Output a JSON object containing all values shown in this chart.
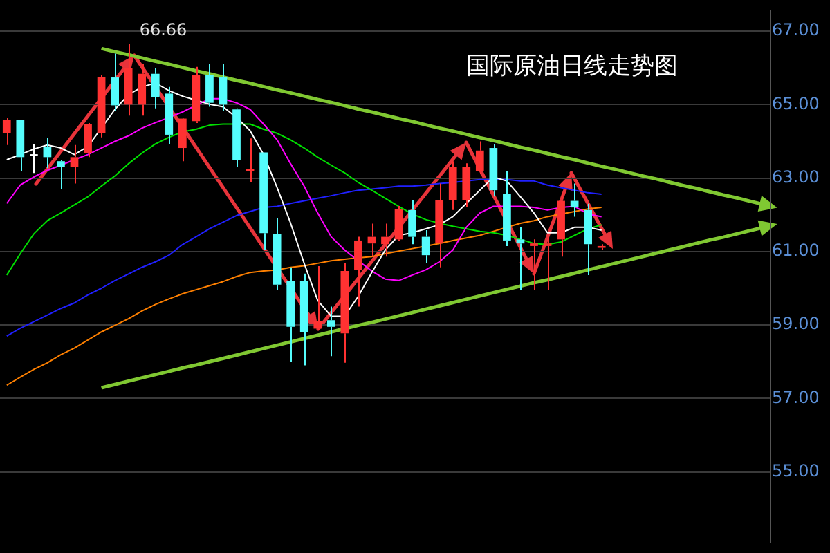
{
  "chart_data": {
    "type": "candlestick",
    "title": "国际原油日线走势图",
    "categories": [
      null,
      null,
      null,
      null,
      null,
      null,
      null,
      null,
      null,
      null,
      null,
      null,
      null,
      null,
      null,
      null,
      null,
      null,
      null,
      null,
      null,
      null,
      null,
      null,
      null,
      null,
      null,
      null,
      null,
      null,
      null,
      null,
      null,
      null,
      null,
      null,
      null,
      null,
      null,
      null,
      null,
      null,
      null,
      null,
      null,
      null,
      null,
      null,
      null,
      null,
      null,
      null,
      null,
      null,
      null,
      null,
      null
    ],
    "ohlc": [
      [
        64.22,
        64.65,
        63.9,
        64.58
      ],
      [
        64.58,
        64.58,
        63.2,
        63.57
      ],
      [
        63.65,
        63.93,
        63.14,
        63.65
      ],
      [
        63.86,
        64.1,
        63.27,
        63.57
      ],
      [
        63.46,
        63.5,
        62.7,
        63.3
      ],
      [
        63.3,
        63.9,
        62.85,
        63.57
      ],
      [
        63.68,
        64.5,
        63.57,
        64.47
      ],
      [
        64.22,
        65.8,
        64.11,
        65.74
      ],
      [
        65.74,
        66.39,
        64.83,
        64.98
      ],
      [
        65.0,
        66.66,
        64.7,
        66.0
      ],
      [
        65.0,
        66.1,
        64.7,
        65.84
      ],
      [
        65.84,
        66.0,
        64.9,
        65.2
      ],
      [
        65.3,
        65.48,
        63.93,
        64.18
      ],
      [
        63.82,
        64.65,
        63.46,
        64.62
      ],
      [
        64.55,
        66.03,
        64.5,
        65.81
      ],
      [
        65.81,
        66.1,
        64.94,
        65.05
      ],
      [
        65.74,
        66.1,
        64.83,
        65.0
      ],
      [
        64.87,
        64.9,
        63.3,
        63.5
      ],
      [
        63.2,
        64.08,
        62.88,
        63.25
      ],
      [
        63.7,
        63.7,
        61.04,
        61.5
      ],
      [
        61.48,
        61.9,
        59.95,
        60.1
      ],
      [
        60.2,
        60.57,
        58.0,
        58.95
      ],
      [
        60.2,
        60.4,
        57.9,
        58.8
      ],
      [
        58.9,
        60.6,
        58.85,
        59.1
      ],
      [
        59.13,
        59.5,
        58.15,
        58.95
      ],
      [
        58.77,
        60.68,
        57.97,
        60.47
      ],
      [
        60.5,
        61.4,
        59.5,
        61.3
      ],
      [
        61.22,
        61.76,
        60.86,
        61.4
      ],
      [
        61.2,
        61.76,
        60.86,
        61.4
      ],
      [
        61.33,
        62.24,
        61.3,
        62.16
      ],
      [
        62.13,
        62.4,
        61.2,
        61.4
      ],
      [
        61.4,
        61.58,
        60.68,
        60.9
      ],
      [
        61.22,
        62.85,
        60.57,
        62.4
      ],
      [
        62.4,
        63.46,
        62.13,
        63.3
      ],
      [
        62.4,
        63.4,
        62.2,
        63.3
      ],
      [
        63.2,
        64.0,
        63.1,
        63.75
      ],
      [
        63.82,
        63.93,
        62.5,
        62.67
      ],
      [
        62.56,
        63.2,
        61.15,
        61.3
      ],
      [
        61.33,
        61.66,
        59.96,
        61.22
      ],
      [
        61.15,
        61.33,
        59.96,
        61.22
      ],
      [
        61.15,
        61.4,
        59.96,
        61.22
      ],
      [
        61.33,
        62.6,
        60.86,
        62.38
      ],
      [
        62.38,
        62.85,
        61.95,
        62.2
      ],
      [
        62.13,
        62.3,
        60.36,
        61.2
      ],
      [
        61.1,
        61.2,
        61.05,
        61.15
      ],
      null,
      null,
      null,
      null,
      null,
      null,
      null,
      null,
      null,
      null,
      null,
      null
    ],
    "colors": [
      "#ff3232",
      "#54fcfc",
      "#ffffff",
      "#54fcfc",
      "#54fcfc",
      "#ff3232",
      "#ff3232",
      "#ff3232",
      "#54fcfc",
      "#ff3232",
      "#ff3232",
      "#54fcfc",
      "#54fcfc",
      "#ff3232",
      "#ff3232",
      "#54fcfc",
      "#54fcfc",
      "#54fcfc",
      "#ff3232",
      "#54fcfc",
      "#54fcfc",
      "#54fcfc",
      "#54fcfc",
      "#ff3232",
      "#54fcfc",
      "#ff3232",
      "#ff3232",
      "#ff3232",
      "#ff3232",
      "#ff3232",
      "#54fcfc",
      "#54fcfc",
      "#ff3232",
      "#ff3232",
      "#ff3232",
      "#ff3232",
      "#54fcfc",
      "#54fcfc",
      "#54fcfc",
      "#ff3232",
      "#ff3232",
      "#ff3232",
      "#54fcfc",
      "#54fcfc",
      "#ff3232",
      null,
      null,
      null,
      null,
      null,
      null,
      null,
      null,
      null,
      null,
      null,
      null
    ],
    "series": [
      {
        "type": "line",
        "color": "#ffffff",
        "values": [
          63.5,
          63.64,
          63.79,
          63.9,
          63.82,
          63.64,
          63.86,
          64.36,
          64.87,
          65.27,
          65.48,
          65.59,
          65.38,
          65.23,
          65.12,
          65.01,
          64.94,
          64.65,
          64.29,
          63.64,
          62.74,
          61.77,
          60.68,
          59.67,
          59.24,
          59.24,
          59.78,
          60.43,
          61.04,
          61.44,
          61.51,
          61.62,
          61.73,
          61.95,
          62.31,
          62.67,
          63.03,
          62.92,
          62.49,
          62.05,
          61.51,
          61.51,
          61.66,
          61.66,
          61.58,
          null,
          null,
          null,
          null,
          null,
          null,
          null,
          null,
          null,
          null,
          null,
          null
        ]
      },
      {
        "type": "line",
        "color": "#ff00ff",
        "values": [
          62.31,
          62.81,
          63.03,
          63.21,
          63.35,
          63.5,
          63.64,
          63.82,
          64.0,
          64.15,
          64.36,
          64.51,
          64.65,
          64.8,
          64.98,
          65.16,
          65.16,
          65.05,
          64.87,
          64.47,
          64.04,
          63.39,
          62.78,
          62.05,
          61.4,
          61.04,
          60.75,
          60.47,
          60.25,
          60.21,
          60.36,
          60.5,
          60.72,
          61.04,
          61.66,
          62.05,
          62.23,
          62.23,
          62.23,
          62.2,
          62.13,
          62.2,
          62.23,
          62.02,
          61.95,
          null,
          null,
          null,
          null,
          null,
          null,
          null,
          null,
          null,
          null,
          null,
          null
        ]
      },
      {
        "type": "line",
        "color": "#00e000",
        "values": [
          60.36,
          60.94,
          61.48,
          61.84,
          62.05,
          62.27,
          62.49,
          62.78,
          63.06,
          63.39,
          63.68,
          63.93,
          64.11,
          64.26,
          64.33,
          64.44,
          64.47,
          64.47,
          64.47,
          64.33,
          64.22,
          64.04,
          63.82,
          63.57,
          63.35,
          63.14,
          62.88,
          62.67,
          62.45,
          62.23,
          62.02,
          61.87,
          61.77,
          61.69,
          61.62,
          61.55,
          61.51,
          61.44,
          61.33,
          61.22,
          61.19,
          61.26,
          61.44,
          61.62,
          61.73,
          null,
          null,
          null,
          null,
          null,
          null,
          null,
          null,
          null,
          null,
          null,
          null
        ]
      },
      {
        "type": "line",
        "color": "#2020ff",
        "values": [
          58.7,
          58.91,
          59.09,
          59.27,
          59.45,
          59.6,
          59.82,
          60.0,
          60.21,
          60.39,
          60.57,
          60.72,
          60.9,
          61.19,
          61.4,
          61.62,
          61.8,
          61.98,
          62.09,
          62.2,
          62.23,
          62.31,
          62.38,
          62.45,
          62.52,
          62.6,
          62.67,
          62.7,
          62.74,
          62.78,
          62.78,
          62.81,
          62.85,
          62.88,
          62.92,
          62.96,
          62.96,
          62.96,
          62.92,
          62.92,
          62.81,
          62.74,
          62.67,
          62.6,
          62.56,
          null,
          null,
          null,
          null,
          null,
          null,
          null,
          null,
          null,
          null,
          null,
          null
        ]
      },
      {
        "type": "line",
        "color": "#ff8000",
        "values": [
          57.36,
          57.58,
          57.79,
          57.97,
          58.19,
          58.37,
          58.59,
          58.81,
          58.99,
          59.17,
          59.38,
          59.56,
          59.71,
          59.85,
          59.96,
          60.07,
          60.18,
          60.32,
          60.43,
          60.47,
          60.5,
          60.57,
          60.61,
          60.68,
          60.75,
          60.79,
          60.83,
          60.86,
          60.94,
          61.01,
          61.08,
          61.15,
          61.22,
          61.3,
          61.37,
          61.44,
          61.55,
          61.66,
          61.77,
          61.84,
          61.95,
          62.02,
          62.09,
          62.16,
          62.2,
          null,
          null,
          null,
          null,
          null,
          null,
          null,
          null,
          null,
          null,
          null,
          null
        ]
      },
      {
        "type": "line",
        "color": "#80c832",
        "values": [
          null,
          null,
          null,
          null,
          null,
          null,
          null,
          66.53,
          66.44,
          66.36,
          66.27,
          66.18,
          66.1,
          66.01,
          65.92,
          65.84,
          65.75,
          65.66,
          65.58,
          65.49,
          65.4,
          65.32,
          65.23,
          65.14,
          65.06,
          64.97,
          64.88,
          64.8,
          64.71,
          64.62,
          64.54,
          64.45,
          64.36,
          64.28,
          64.19,
          64.1,
          64.02,
          63.93,
          63.84,
          63.76,
          63.67,
          63.58,
          63.5,
          63.41,
          63.32,
          63.24,
          63.15,
          63.06,
          62.98,
          62.89,
          62.8,
          62.72,
          62.63,
          62.54,
          62.46,
          62.37,
          62.28
        ]
      },
      {
        "type": "line",
        "color": "#80c832",
        "values": [
          null,
          null,
          null,
          null,
          null,
          null,
          null,
          57.29,
          57.38,
          57.47,
          57.56,
          57.65,
          57.74,
          57.83,
          57.91,
          58.0,
          58.09,
          58.18,
          58.27,
          58.36,
          58.45,
          58.54,
          58.63,
          58.72,
          58.81,
          58.9,
          58.99,
          59.07,
          59.16,
          59.25,
          59.34,
          59.43,
          59.52,
          59.61,
          59.7,
          59.79,
          59.88,
          59.97,
          60.06,
          60.15,
          60.23,
          60.32,
          60.41,
          60.5,
          60.59,
          60.68,
          60.77,
          60.86,
          60.95,
          61.04,
          61.13,
          61.22,
          61.31,
          61.39,
          61.48,
          61.57,
          61.66
        ]
      }
    ],
    "ylim": [
      53.1,
      67.54
    ],
    "yticks": [
      {
        "value": 55,
        "label": "55.00"
      },
      {
        "value": 57,
        "label": "57.00"
      },
      {
        "value": 59,
        "label": "59.00"
      },
      {
        "value": 61,
        "label": "61.00"
      },
      {
        "value": 63,
        "label": "63.00"
      },
      {
        "value": 65,
        "label": "65.00"
      },
      {
        "value": 67,
        "label": "67.00"
      }
    ],
    "grid": "y",
    "tick_labels": "y",
    "annotations": [
      "66.66"
    ]
  }
}
